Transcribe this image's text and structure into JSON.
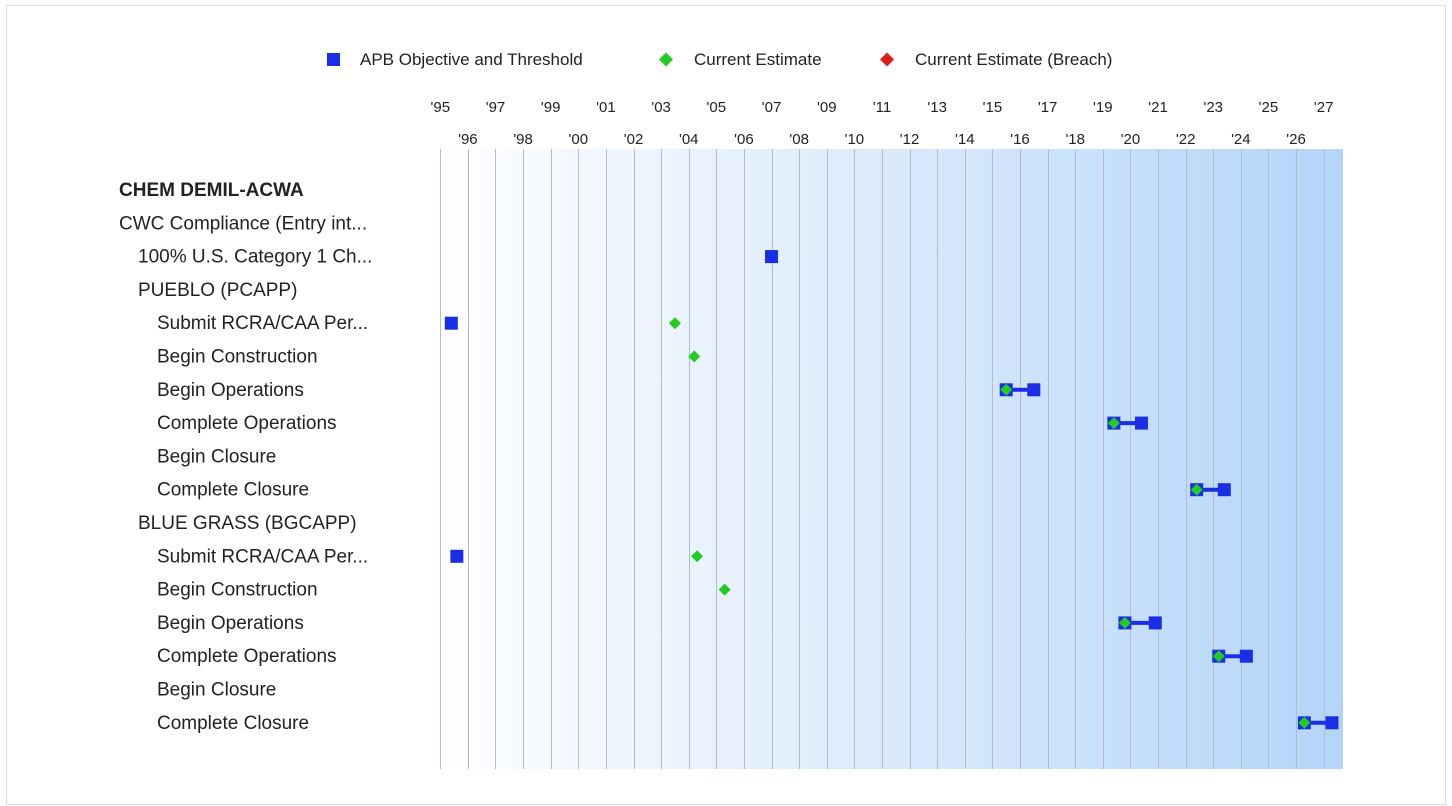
{
  "chart_data": {
    "type": "scatter",
    "title": "",
    "xlabel": "",
    "ylabel": "",
    "xlim": [
      1994.7,
      2027.7
    ],
    "x_ticks_top": [
      "'95",
      "'97",
      "'99",
      "'01",
      "'03",
      "'05",
      "'07",
      "'09",
      "'11",
      "'13",
      "'15",
      "'17",
      "'19",
      "'21",
      "'23",
      "'25",
      "'27"
    ],
    "x_ticks_bottom": [
      "'96",
      "'98",
      "'00",
      "'02",
      "'04",
      "'06",
      "'08",
      "'10",
      "'12",
      "'14",
      "'16",
      "'18",
      "'20",
      "'22",
      "'24",
      "'26"
    ],
    "legend": {
      "placement": "top",
      "items": [
        {
          "label": "APB Objective and Threshold",
          "color": "#1a2ee6",
          "marker": "square"
        },
        {
          "label": "Current Estimate",
          "color": "#22cc22",
          "marker": "diamond"
        },
        {
          "label": "Current Estimate (Breach)",
          "color": "#e01b1b",
          "marker": "diamond"
        }
      ]
    },
    "rows": [
      {
        "label": "CHEM DEMIL-ACWA",
        "indent": 0,
        "bold": true
      },
      {
        "label": "CWC Compliance (Entry int...",
        "indent": 0
      },
      {
        "label": "100% U.S. Category 1 Ch...",
        "indent": 1,
        "objective": 2007.0
      },
      {
        "label": "PUEBLO (PCAPP)",
        "indent": 1
      },
      {
        "label": "Submit RCRA/CAA Per...",
        "indent": 2,
        "objective": 1995.4,
        "estimate": 2003.5
      },
      {
        "label": "Begin Construction",
        "indent": 2,
        "estimate": 2004.2
      },
      {
        "label": "Begin Operations",
        "indent": 2,
        "objective": 2015.5,
        "threshold": 2016.5,
        "estimate": 2015.5
      },
      {
        "label": "Complete Operations",
        "indent": 2,
        "objective": 2019.4,
        "threshold": 2020.4,
        "estimate": 2019.4
      },
      {
        "label": "Begin Closure",
        "indent": 2
      },
      {
        "label": "Complete Closure",
        "indent": 2,
        "objective": 2022.4,
        "threshold": 2023.4,
        "estimate": 2022.4
      },
      {
        "label": "BLUE GRASS (BGCAPP)",
        "indent": 1
      },
      {
        "label": "Submit RCRA/CAA Per...",
        "indent": 2,
        "objective": 1995.6,
        "estimate": 2004.3
      },
      {
        "label": "Begin Construction",
        "indent": 2,
        "estimate": 2005.3
      },
      {
        "label": "Begin Operations",
        "indent": 2,
        "objective": 2019.8,
        "threshold": 2020.9,
        "estimate": 2019.8
      },
      {
        "label": "Complete Operations",
        "indent": 2,
        "objective": 2023.2,
        "threshold": 2024.2,
        "estimate": 2023.2
      },
      {
        "label": "Begin Closure",
        "indent": 2
      },
      {
        "label": "Complete Closure",
        "indent": 2,
        "objective": 2026.3,
        "threshold": 2027.3,
        "estimate": 2026.3
      }
    ]
  }
}
